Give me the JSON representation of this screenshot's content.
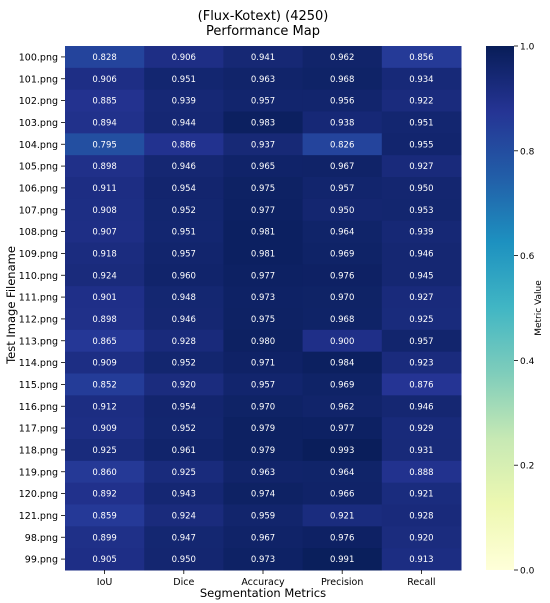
{
  "chart_data": {
    "type": "heatmap",
    "title_line1": "(Flux-Kotext) (4250)",
    "title_line2": "Performance Map",
    "xlabel": "Segmentation Metrics",
    "ylabel": "Test Image Filename",
    "columns": [
      "IoU",
      "Dice",
      "Accuracy",
      "Precision",
      "Recall"
    ],
    "rows": [
      "100.png",
      "101.png",
      "102.png",
      "103.png",
      "104.png",
      "105.png",
      "106.png",
      "107.png",
      "108.png",
      "109.png",
      "110.png",
      "111.png",
      "112.png",
      "113.png",
      "114.png",
      "115.png",
      "116.png",
      "117.png",
      "118.png",
      "119.png",
      "120.png",
      "121.png",
      "98.png",
      "99.png"
    ],
    "values": [
      [
        0.828,
        0.906,
        0.941,
        0.962,
        0.856
      ],
      [
        0.906,
        0.951,
        0.963,
        0.968,
        0.934
      ],
      [
        0.885,
        0.939,
        0.957,
        0.956,
        0.922
      ],
      [
        0.894,
        0.944,
        0.983,
        0.938,
        0.951
      ],
      [
        0.795,
        0.886,
        0.937,
        0.826,
        0.955
      ],
      [
        0.898,
        0.946,
        0.965,
        0.967,
        0.927
      ],
      [
        0.911,
        0.954,
        0.975,
        0.957,
        0.95
      ],
      [
        0.908,
        0.952,
        0.977,
        0.95,
        0.953
      ],
      [
        0.907,
        0.951,
        0.981,
        0.964,
        0.939
      ],
      [
        0.918,
        0.957,
        0.981,
        0.969,
        0.946
      ],
      [
        0.924,
        0.96,
        0.977,
        0.976,
        0.945
      ],
      [
        0.901,
        0.948,
        0.973,
        0.97,
        0.927
      ],
      [
        0.898,
        0.946,
        0.975,
        0.968,
        0.925
      ],
      [
        0.865,
        0.928,
        0.98,
        0.9,
        0.957
      ],
      [
        0.909,
        0.952,
        0.971,
        0.984,
        0.923
      ],
      [
        0.852,
        0.92,
        0.957,
        0.969,
        0.876
      ],
      [
        0.912,
        0.954,
        0.97,
        0.962,
        0.946
      ],
      [
        0.909,
        0.952,
        0.979,
        0.977,
        0.929
      ],
      [
        0.925,
        0.961,
        0.979,
        0.993,
        0.931
      ],
      [
        0.86,
        0.925,
        0.963,
        0.964,
        0.888
      ],
      [
        0.892,
        0.943,
        0.974,
        0.966,
        0.921
      ],
      [
        0.859,
        0.924,
        0.959,
        0.921,
        0.928
      ],
      [
        0.899,
        0.947,
        0.967,
        0.976,
        0.92
      ],
      [
        0.905,
        0.95,
        0.973,
        0.991,
        0.913
      ]
    ],
    "colormap": "YlGnBu",
    "vmin": 0.0,
    "vmax": 1.0,
    "colorbar_label": "Metric Value",
    "colorbar_ticks": [
      "0.0",
      "0.2",
      "0.4",
      "0.6",
      "0.8",
      "1.0"
    ]
  }
}
